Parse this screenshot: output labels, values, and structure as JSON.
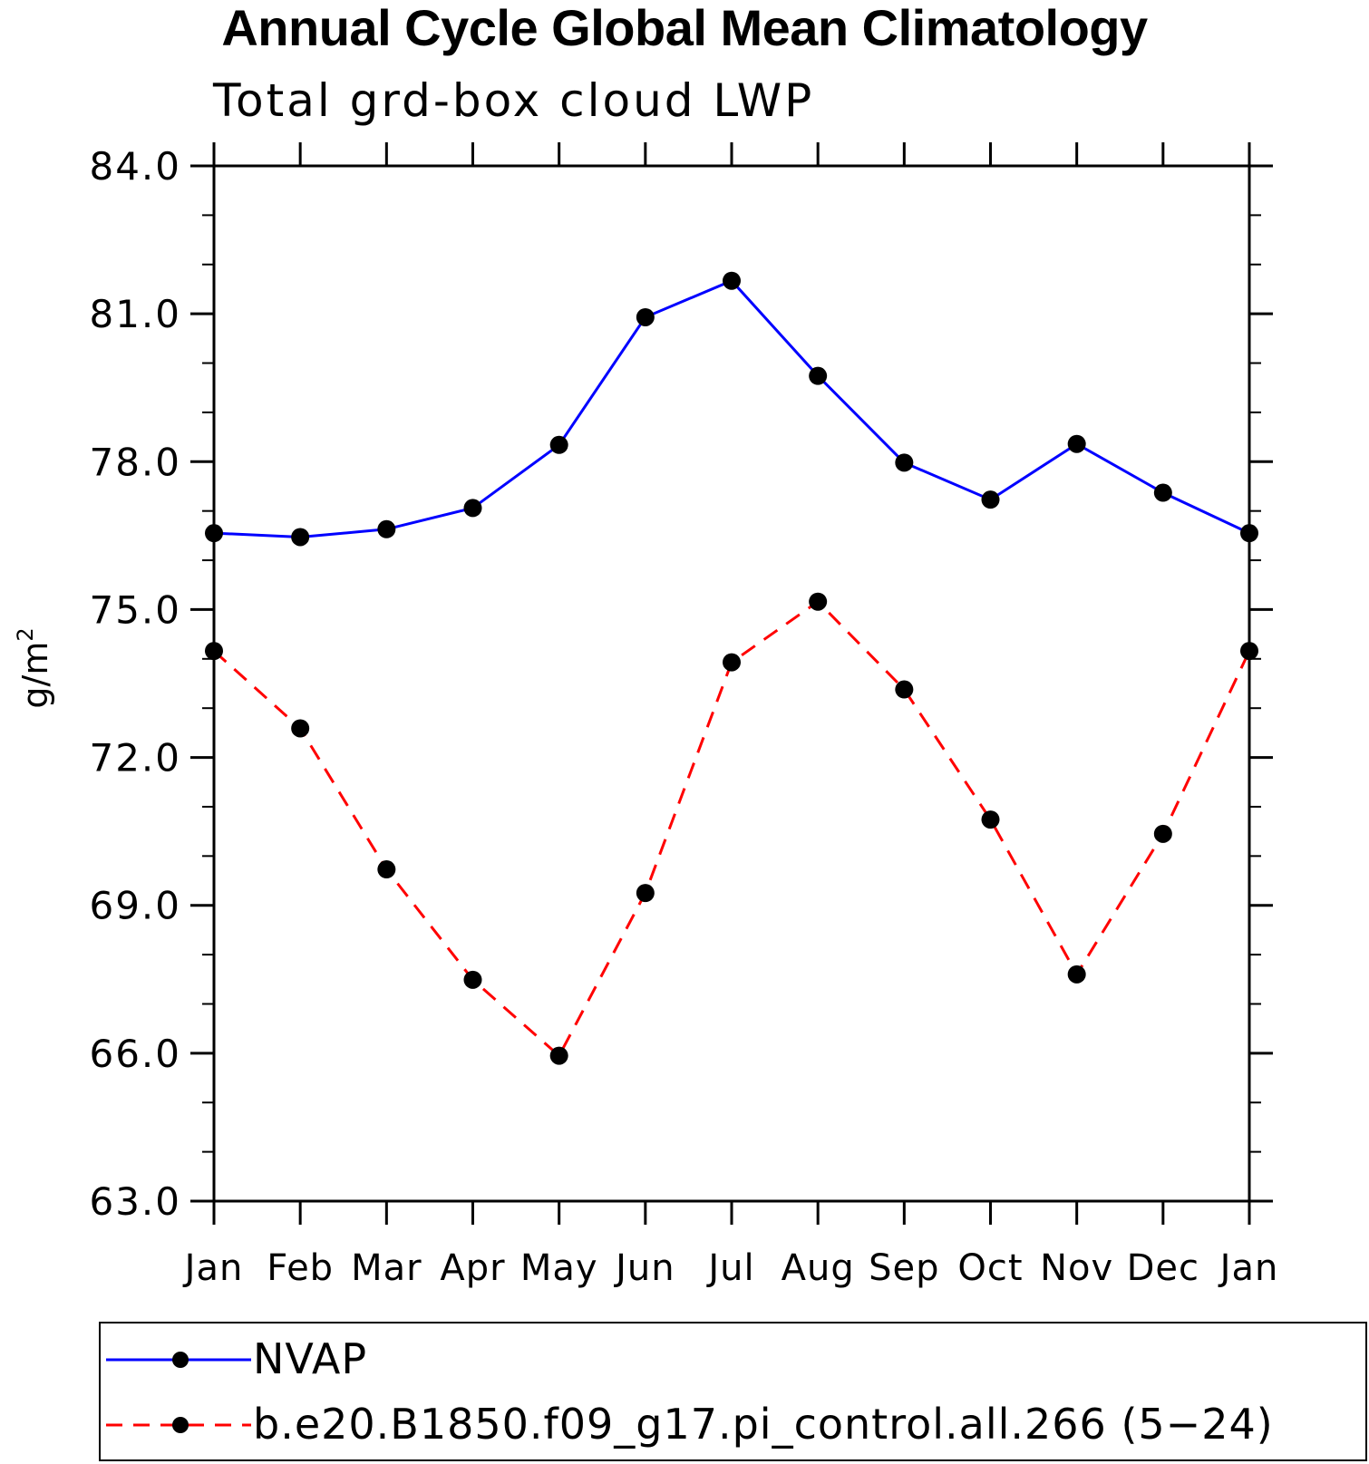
{
  "chart_data": {
    "type": "line",
    "title": "Annual Cycle Global Mean Climatology",
    "subtitle": "Total grd-box cloud LWP",
    "ylabel": "g/m",
    "ylabel_superscript": "2",
    "xlabel": "",
    "ylim": [
      63.0,
      84.0
    ],
    "yticks": [
      "63.0",
      "66.0",
      "69.0",
      "72.0",
      "75.0",
      "78.0",
      "81.0",
      "84.0"
    ],
    "ytick_values": [
      63,
      66,
      69,
      72,
      75,
      78,
      81,
      84
    ],
    "categories": [
      "Jan",
      "Feb",
      "Mar",
      "Apr",
      "May",
      "Jun",
      "Jul",
      "Aug",
      "Sep",
      "Oct",
      "Nov",
      "Dec",
      "Jan"
    ],
    "series": [
      {
        "name": "NVAP",
        "color": "#0000ff",
        "dash": "solid",
        "values": [
          76.55,
          76.47,
          76.63,
          77.06,
          78.34,
          80.93,
          81.67,
          79.74,
          77.98,
          77.23,
          78.36,
          77.37,
          76.55
        ]
      },
      {
        "name": "b.e20.B1850.f09_g17.pi_control.all.266 (5−24)",
        "color": "#ff0000",
        "dash": "dashed",
        "values": [
          74.16,
          72.59,
          69.73,
          67.49,
          65.95,
          69.25,
          73.93,
          75.16,
          73.38,
          70.74,
          67.6,
          70.45,
          74.16
        ]
      }
    ],
    "legend_position": "bottom",
    "marker": "filled-circle",
    "marker_color": "#000000"
  }
}
